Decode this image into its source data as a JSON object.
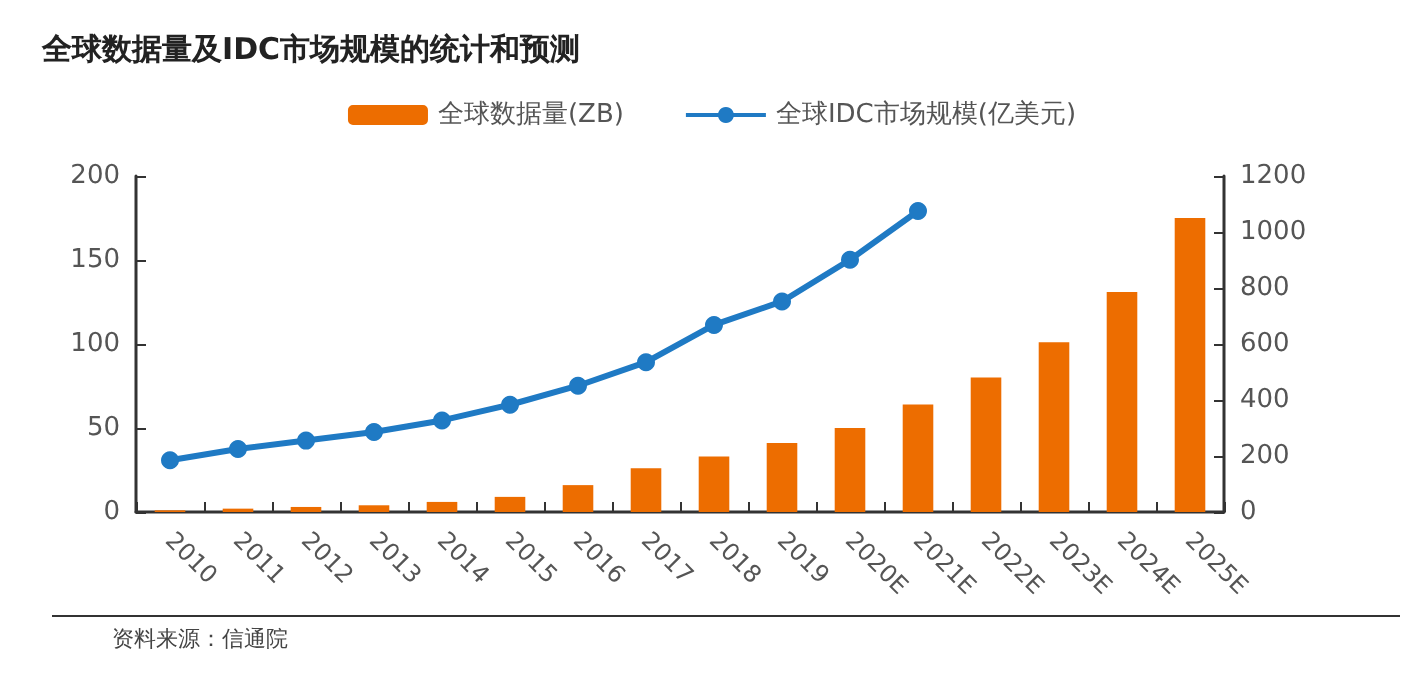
{
  "chart_data": {
    "type": "bar",
    "title": "全球数据量及IDC市场规模的统计和预测",
    "categories": [
      "2010",
      "2011",
      "2012",
      "2013",
      "2014",
      "2015",
      "2016",
      "2017",
      "2018",
      "2019",
      "2020E",
      "2021E",
      "2022E",
      "2023E",
      "2024E",
      "2025E"
    ],
    "series": [
      {
        "name": "全球数据量(ZB)",
        "color": "#ed6d00",
        "values": [
          1,
          2,
          3,
          4,
          6,
          9,
          16,
          26,
          33,
          41,
          50,
          64,
          80,
          101,
          131,
          175
        ]
      },
      {
        "name": "全球IDC市场规模(亿美元)",
        "type": "line",
        "axis": "y2",
        "color": "#1f7ac4",
        "values": [
          185,
          225,
          255,
          286,
          327,
          383,
          451,
          535,
          668,
          752,
          901,
          1075,
          null,
          null,
          null,
          null
        ]
      }
    ],
    "ylim": [
      0,
      200
    ],
    "yticks": [
      0,
      50,
      100,
      150,
      200
    ],
    "y2lim": [
      0,
      1200
    ],
    "y2ticks": [
      0,
      200,
      400,
      600,
      800,
      1000,
      1200
    ],
    "legend": "top",
    "marker": "circle",
    "grid": false,
    "annotations": [
      "资料来源：信通院"
    ]
  }
}
